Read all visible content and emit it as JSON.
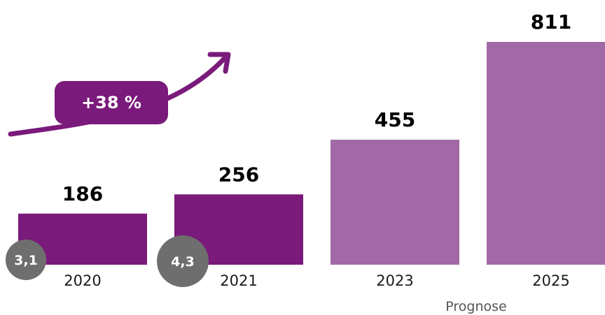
{
  "chart_data": {
    "type": "bar",
    "categories": [
      "2020",
      "2021",
      "2023",
      "2025"
    ],
    "values": [
      186,
      256,
      455,
      811
    ],
    "forecast": [
      false,
      false,
      true,
      true
    ],
    "ylim": [
      0,
      811
    ],
    "xlabel": "",
    "ylabel": "",
    "annotations": {
      "growth": "+38 %",
      "badges": [
        {
          "category": "2020",
          "text": "3,1"
        },
        {
          "category": "2021",
          "text": "4,3"
        }
      ],
      "forecast_label": "Prognose"
    }
  },
  "colors": {
    "actual": "#7a1a7a",
    "forecast": "#a16aa6",
    "badge": "#6e6e6e",
    "text": "#000000"
  }
}
